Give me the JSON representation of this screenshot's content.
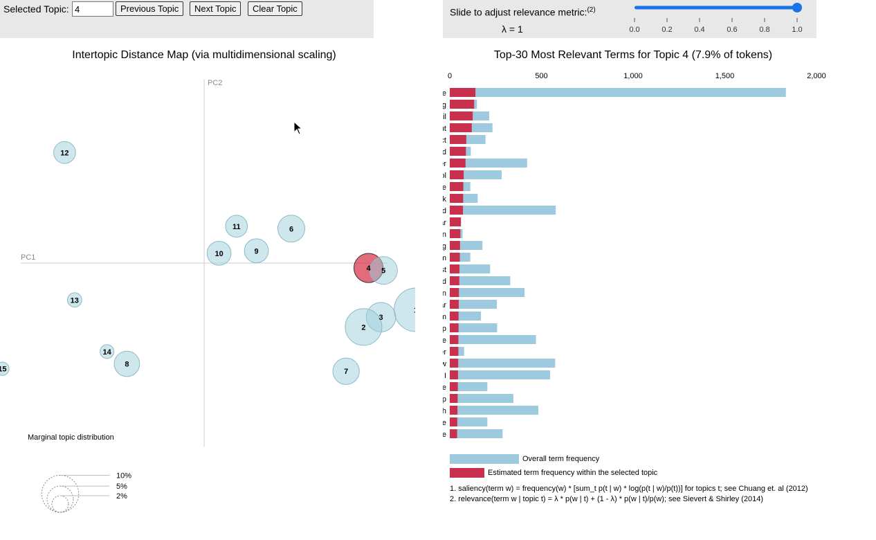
{
  "controls": {
    "selected_label": "Selected Topic:",
    "selected_value": "4",
    "prev_label": "Previous Topic",
    "next_label": "Next Topic",
    "clear_label": "Clear Topic"
  },
  "slider": {
    "label": "Slide to adjust relevance metric:",
    "footnote": "(2)",
    "lambda_text": "λ = 1",
    "value": 1.0,
    "ticks": [
      "0.0",
      "0.2",
      "0.4",
      "0.6",
      "0.8",
      "1.0"
    ]
  },
  "left_title": "Intertopic Distance Map (via multidimensional scaling)",
  "right_title": "Top-30 Most Relevant Terms for Topic 4 (7.9% of tokens)",
  "colors": {
    "bubble": "#9ecfdc",
    "selected": "#d52c45",
    "overall_bar": "#9ecae0",
    "topic_bar": "#c9304d"
  },
  "chart_data": [
    {
      "type": "scatter",
      "title": "Intertopic Distance Map (via multidimensional scaling)",
      "xlabel": "PC1",
      "ylabel": "PC2",
      "selected_topic": "4",
      "points": [
        {
          "topic": "12",
          "x": -0.56,
          "y": 0.45,
          "size": 3.5
        },
        {
          "topic": "11",
          "x": 0.13,
          "y": 0.15,
          "size": 3.5
        },
        {
          "topic": "6",
          "x": 0.35,
          "y": 0.14,
          "size": 5.3
        },
        {
          "topic": "10",
          "x": 0.06,
          "y": 0.04,
          "size": 4.2
        },
        {
          "topic": "9",
          "x": 0.21,
          "y": 0.05,
          "size": 4.2
        },
        {
          "topic": "4",
          "x": 0.66,
          "y": -0.02,
          "size": 6.2
        },
        {
          "topic": "5",
          "x": 0.72,
          "y": -0.03,
          "size": 5.6
        },
        {
          "topic": "13",
          "x": -0.52,
          "y": -0.15,
          "size": 1.5
        },
        {
          "topic": "1",
          "x": 0.85,
          "y": -0.19,
          "size": 13.8
        },
        {
          "topic": "3",
          "x": 0.71,
          "y": -0.22,
          "size": 6.3
        },
        {
          "topic": "2",
          "x": 0.64,
          "y": -0.26,
          "size": 9.8
        },
        {
          "topic": "14",
          "x": -0.39,
          "y": -0.36,
          "size": 1.4
        },
        {
          "topic": "8",
          "x": -0.31,
          "y": -0.41,
          "size": 4.7
        },
        {
          "topic": "15",
          "x": -0.81,
          "y": -0.43,
          "size": 1.3
        },
        {
          "topic": "7",
          "x": 0.57,
          "y": -0.44,
          "size": 5.1
        }
      ],
      "legend": {
        "title": "Marginal topic distribution",
        "items": [
          {
            "label": "2%",
            "value": 2
          },
          {
            "label": "5%",
            "value": 5
          },
          {
            "label": "10%",
            "value": 10
          }
        ]
      }
    },
    {
      "type": "bar",
      "title": "Top-30 Most Relevant Terms for Topic 4 (7.9% of tokens)",
      "xlim": [
        0,
        2000
      ],
      "xticks": [
        0,
        500,
        1000,
        1500,
        2000
      ],
      "xtick_labels": [
        "0",
        "500",
        "1,000",
        "1,500",
        "2,000"
      ],
      "categories": [
        "use",
        "marketing",
        "email",
        "content",
        "product",
        "ad",
        "user",
        "tool",
        "guide",
        "facebook",
        "build",
        "Angular",
        "linkedin",
        "blog",
        "medium",
        "post",
        "good",
        "version",
        "year",
        "team",
        "help",
        "create",
        "twitter",
        "new",
        "I",
        "people",
        "app",
        "launch",
        "free",
        "article"
      ],
      "series": [
        {
          "name": "Overall term frequency",
          "values": [
            1833,
            148,
            215,
            233,
            195,
            115,
            422,
            283,
            112,
            152,
            578,
            61,
            70,
            178,
            112,
            220,
            330,
            408,
            257,
            170,
            258,
            470,
            78,
            575,
            547,
            205,
            347,
            483,
            205,
            288
          ]
        },
        {
          "name": "Estimated term frequency within the selected topic",
          "values": [
            140,
            133,
            125,
            120,
            90,
            88,
            86,
            76,
            74,
            73,
            72,
            61,
            58,
            56,
            55,
            53,
            52,
            50,
            49,
            48,
            48,
            47,
            47,
            46,
            45,
            44,
            43,
            42,
            41,
            40
          ]
        }
      ],
      "legend_labels": [
        "Overall term frequency",
        "Estimated term frequency within the selected topic"
      ]
    }
  ],
  "footnotes": [
    "1. saliency(term w) = frequency(w) * [sum_t p(t | w) * log(p(t | w)/p(t))] for topics t; see Chuang et. al (2012)",
    "2. relevance(term w | topic t) = λ * p(w | t) + (1 - λ) * p(w | t)/p(w); see Sievert & Shirley (2014)"
  ]
}
